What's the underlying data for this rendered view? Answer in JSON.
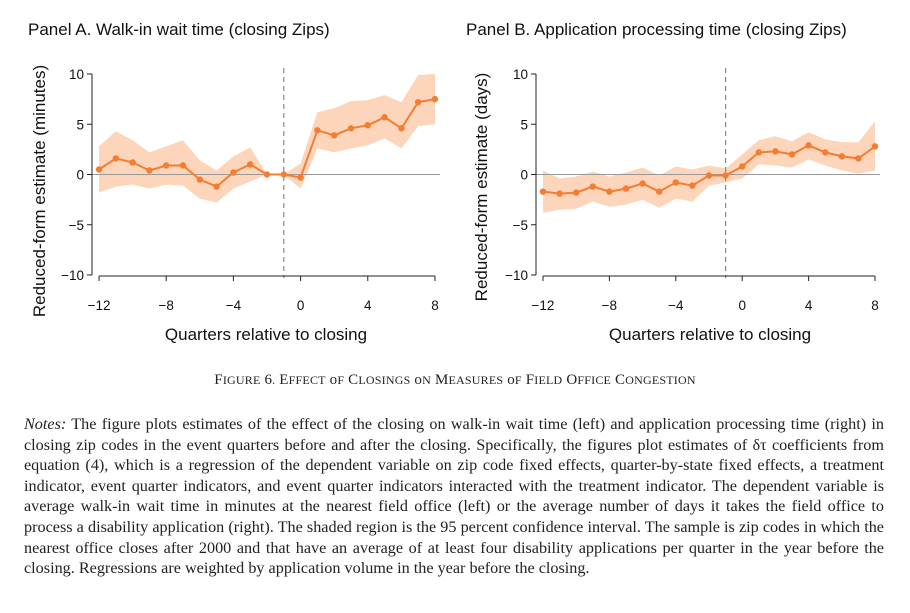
{
  "figure": {
    "caption_prefix": "Figure 6.",
    "caption_text": "Effect of Closings on Measures of Field Office Congestion",
    "notes_label": "Notes:",
    "notes_text": "The figure plots estimates of the effect of the closing on walk-in wait time (left) and application processing time (right) in closing zip codes in the event quarters before and after the closing. Specifically, the figures plot estimates of δτ coefficients from equation (4), which is a regression of the dependent variable on zip code fixed effects, quarter-by-state fixed effects, a treatment indicator, event quarter indicators, and event quarter indicators interacted with the treatment indicator. The dependent variable is average walk-in wait time in minutes at the nearest field office (left) or the average number of days it takes the field office to process a disability application (right). The shaded region is the 95 percent confidence interval. The sample is zip codes in which the nearest office closes after 2000 and that have an average of at least four disability applications per quarter in the year before the closing. Regressions are weighted by application volume in the year before the closing."
  },
  "colors": {
    "line": "#f47d32",
    "band": "#fcd5ba",
    "zero": "#999999",
    "vline": "#888888"
  },
  "chart_data": [
    {
      "type": "line",
      "title": "Panel A. Walk-in wait time (closing Zips)",
      "xlabel": "Quarters relative to closing",
      "ylabel": "Reduced-form estimate (minutes)",
      "xlim": [
        -12.3,
        8.3
      ],
      "ylim": [
        -10,
        10
      ],
      "xticks": [
        -12,
        -8,
        -4,
        0,
        4,
        8
      ],
      "yticks": [
        -10,
        -5,
        0,
        5,
        10
      ],
      "vline_x": -1,
      "x": [
        -12,
        -11,
        -10,
        -9,
        -8,
        -7,
        -6,
        -5,
        -4,
        -3,
        -2,
        -1,
        0,
        1,
        2,
        3,
        4,
        5,
        6,
        7,
        8
      ],
      "y": [
        0.5,
        1.6,
        1.2,
        0.4,
        0.9,
        0.9,
        -0.5,
        -1.2,
        0.2,
        1.0,
        0.0,
        0.0,
        -0.3,
        4.4,
        3.9,
        4.6,
        4.9,
        5.7,
        4.6,
        7.2,
        7.5
      ],
      "ci_low": [
        -1.8,
        -1.2,
        -1.0,
        -1.4,
        -1.0,
        -1.1,
        -2.4,
        -2.8,
        -1.4,
        -0.7,
        0.0,
        0.0,
        -1.4,
        2.6,
        2.2,
        2.6,
        2.9,
        3.6,
        2.6,
        4.8,
        5.0
      ],
      "ci_high": [
        2.8,
        4.3,
        3.4,
        2.2,
        2.8,
        3.4,
        1.4,
        0.4,
        1.8,
        2.7,
        0.0,
        0.0,
        1.1,
        6.2,
        6.6,
        7.3,
        7.4,
        7.9,
        7.2,
        9.9,
        10.0
      ]
    },
    {
      "type": "line",
      "title": "Panel B. Application processing time (closing Zips)",
      "xlabel": "Quarters relative to closing",
      "ylabel": "Reduced-form estimate (days)",
      "xlim": [
        -12.3,
        8.3
      ],
      "ylim": [
        -10,
        10
      ],
      "xticks": [
        -12,
        -8,
        -4,
        0,
        4,
        8
      ],
      "yticks": [
        -10,
        -5,
        0,
        5,
        10
      ],
      "vline_x": -1,
      "x": [
        -12,
        -11,
        -10,
        -9,
        -8,
        -7,
        -6,
        -5,
        -4,
        -3,
        -2,
        -1,
        0,
        1,
        2,
        3,
        4,
        5,
        6,
        7,
        8
      ],
      "y": [
        -1.7,
        -1.9,
        -1.8,
        -1.2,
        -1.7,
        -1.4,
        -0.9,
        -1.7,
        -0.8,
        -1.1,
        -0.1,
        -0.1,
        0.8,
        2.2,
        2.3,
        2.0,
        2.9,
        2.2,
        1.8,
        1.6,
        2.8
      ],
      "ci_low": [
        -3.8,
        -3.5,
        -3.4,
        -2.7,
        -3.2,
        -3.0,
        -2.5,
        -3.3,
        -2.4,
        -2.7,
        -1.1,
        -0.8,
        -0.4,
        1.0,
        0.9,
        0.7,
        1.5,
        0.9,
        0.4,
        0.1,
        0.4
      ],
      "ci_high": [
        0.4,
        -0.4,
        -0.2,
        0.3,
        -0.2,
        0.2,
        0.7,
        -0.1,
        0.8,
        0.5,
        0.9,
        0.6,
        2.0,
        3.4,
        3.8,
        3.3,
        4.2,
        3.5,
        3.2,
        3.2,
        5.3
      ]
    }
  ]
}
